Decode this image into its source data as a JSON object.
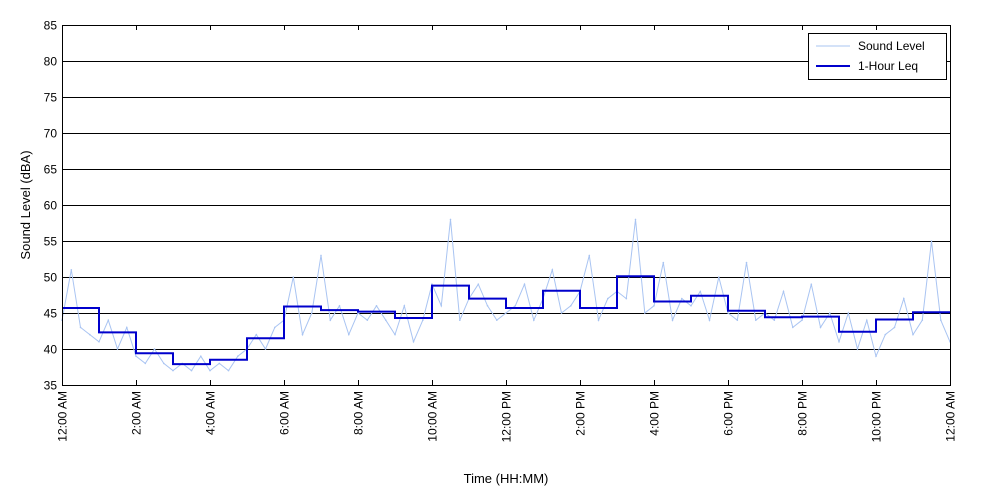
{
  "chart_data": {
    "type": "line",
    "title": "",
    "xlabel": "Time (HH:MM)",
    "ylabel": "Sound Level (dBA)",
    "xlim": [
      0,
      24
    ],
    "ylim": [
      35,
      85
    ],
    "y_ticks": [
      35,
      40,
      45,
      50,
      55,
      60,
      65,
      70,
      75,
      80,
      85
    ],
    "x_ticks": [
      0,
      2,
      4,
      6,
      8,
      10,
      12,
      14,
      16,
      18,
      20,
      22,
      24
    ],
    "x_tick_labels": [
      "12:00 AM",
      "2:00 AM",
      "4:00 AM",
      "6:00 AM",
      "8:00 AM",
      "10:00 AM",
      "12:00 PM",
      "2:00 PM",
      "4:00 PM",
      "6:00 PM",
      "8:00 PM",
      "10:00 PM",
      "12:00 AM"
    ],
    "grid": "horizontal",
    "legend_position": "top-right",
    "legend": [
      "Sound Level",
      "1-Hour Leq"
    ],
    "series": [
      {
        "name": "Sound Level",
        "color": "#a9c4f2",
        "x": [
          0.0,
          0.25,
          0.5,
          0.75,
          1.0,
          1.25,
          1.5,
          1.75,
          2.0,
          2.25,
          2.5,
          2.75,
          3.0,
          3.25,
          3.5,
          3.75,
          4.0,
          4.25,
          4.5,
          4.75,
          5.0,
          5.25,
          5.5,
          5.75,
          6.0,
          6.25,
          6.5,
          6.75,
          7.0,
          7.25,
          7.5,
          7.75,
          8.0,
          8.25,
          8.5,
          8.75,
          9.0,
          9.25,
          9.5,
          9.75,
          10.0,
          10.25,
          10.5,
          10.75,
          11.0,
          11.25,
          11.5,
          11.75,
          12.0,
          12.25,
          12.5,
          12.75,
          13.0,
          13.25,
          13.5,
          13.75,
          14.0,
          14.25,
          14.5,
          14.75,
          15.0,
          15.25,
          15.5,
          15.75,
          16.0,
          16.25,
          16.5,
          16.75,
          17.0,
          17.25,
          17.5,
          17.75,
          18.0,
          18.25,
          18.5,
          18.75,
          19.0,
          19.25,
          19.5,
          19.75,
          20.0,
          20.25,
          20.5,
          20.75,
          21.0,
          21.25,
          21.5,
          21.75,
          22.0,
          22.25,
          22.5,
          22.75,
          23.0,
          23.25,
          23.5,
          23.75,
          24.0
        ],
        "values": [
          44,
          51,
          43,
          42,
          41,
          44,
          40,
          43,
          39,
          38,
          40,
          38,
          37,
          38,
          37,
          39,
          37,
          38,
          37,
          39,
          40,
          42,
          40,
          43,
          44,
          50,
          42,
          45,
          53,
          44,
          46,
          42,
          45,
          44,
          46,
          44,
          42,
          46,
          41,
          44,
          49,
          46,
          58,
          44,
          47,
          49,
          46,
          44,
          45,
          46,
          49,
          44,
          47,
          51,
          45,
          46,
          48,
          53,
          44,
          47,
          48,
          47,
          58,
          45,
          46,
          52,
          44,
          47,
          46,
          48,
          44,
          50,
          45,
          44,
          52,
          44,
          45,
          44,
          48,
          43,
          44,
          49,
          43,
          45,
          41,
          45,
          40,
          44,
          39,
          42,
          43,
          47,
          42,
          44,
          55,
          44,
          41
        ]
      },
      {
        "name": "1-Hour Leq",
        "color": "#0000cc",
        "step": true,
        "x": [
          0,
          1,
          2,
          3,
          4,
          5,
          6,
          7,
          8,
          9,
          10,
          11,
          12,
          13,
          14,
          15,
          16,
          17,
          18,
          19,
          20,
          21,
          22,
          23,
          24
        ],
        "values": [
          45.7,
          42.3,
          39.4,
          37.9,
          38.5,
          41.5,
          45.9,
          45.4,
          45.2,
          44.3,
          48.8,
          47.0,
          45.7,
          48.1,
          45.7,
          50.1,
          46.6,
          47.4,
          45.3,
          44.4,
          44.5,
          42.4,
          44.1,
          45.1,
          45.1
        ]
      }
    ]
  }
}
